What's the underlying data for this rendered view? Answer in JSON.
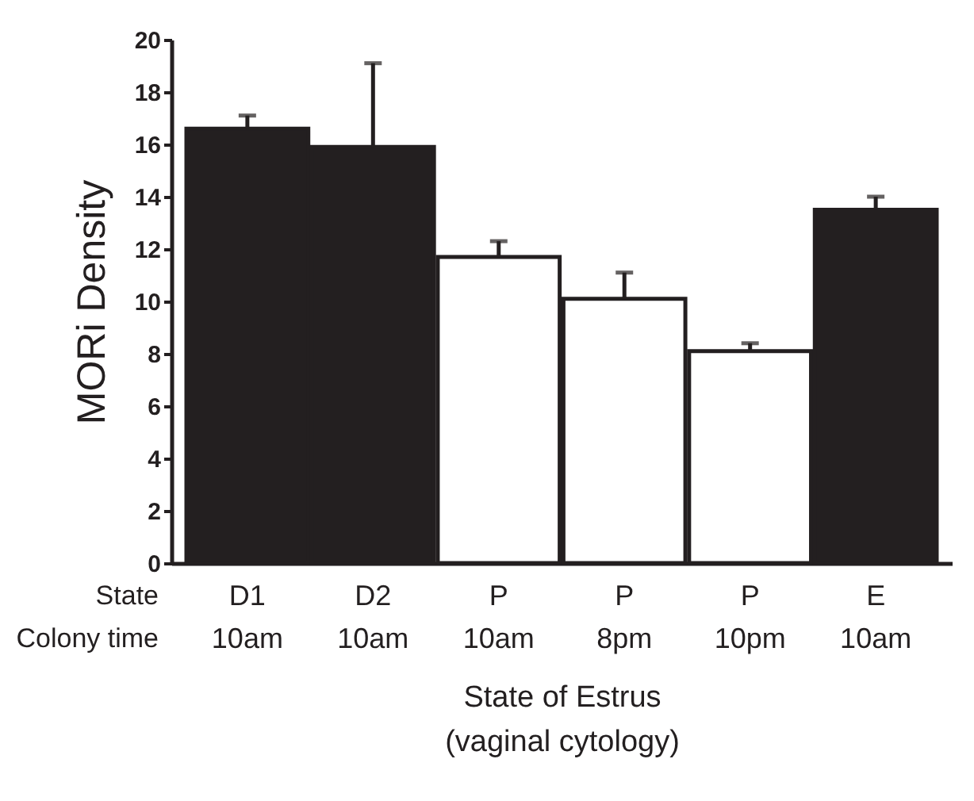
{
  "chart_data": {
    "type": "bar",
    "ylabel": "MORi Density",
    "xlabel": "State of Estrus\n(vaginal cytology)",
    "categories": [
      "D1\n10am",
      "D2\n10am",
      "P\n10am",
      "P\n8pm",
      "P\n10pm",
      "E\n10am"
    ],
    "values": [
      16.6,
      15.9,
      11.7,
      10.1,
      8.1,
      13.5
    ],
    "errors": [
      [
        16.6,
        17.1
      ],
      [
        15.9,
        19.1
      ],
      [
        11.7,
        12.3
      ],
      [
        10.1,
        11.1
      ],
      [
        8.1,
        8.4
      ],
      [
        13.5,
        14.0
      ]
    ],
    "colors": [
      "#231f20",
      "#231f20",
      "#ffffff",
      "#ffffff",
      "#ffffff",
      "#231f20"
    ],
    "ylim": [
      0,
      20
    ],
    "yticks": [
      0,
      2,
      4,
      6,
      8,
      10,
      12,
      14,
      16,
      18,
      20
    ],
    "annotations": [
      "State",
      "Colony time"
    ]
  }
}
